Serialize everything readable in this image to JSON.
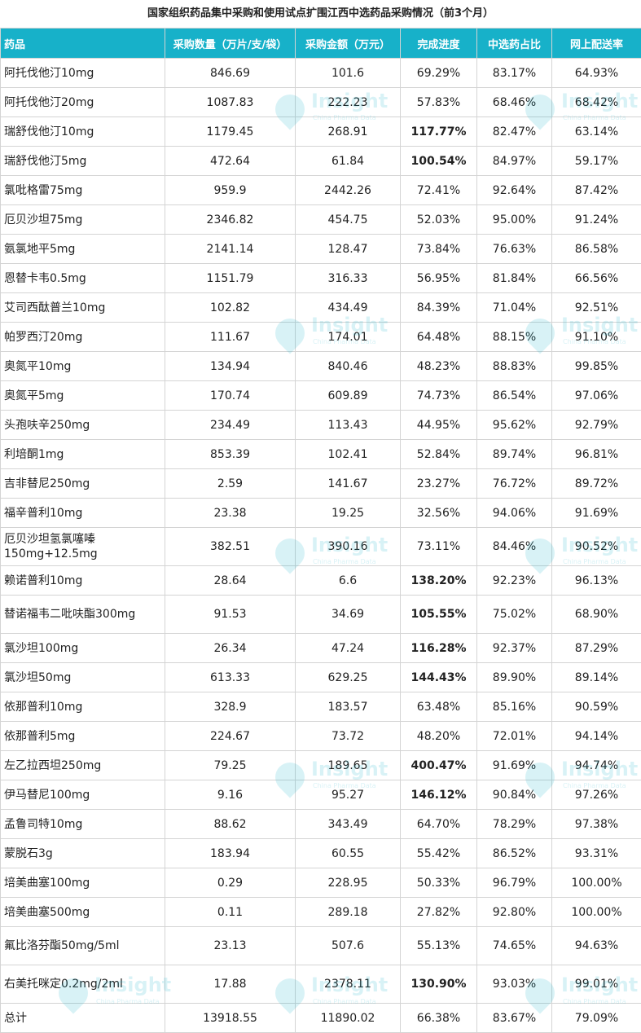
{
  "title": "国家组织药品集中采购和使用试点扩围江西中选药品采购情况（前3个月）",
  "watermark": {
    "word": "Insight",
    "sub": "China Pharma Data"
  },
  "headers": [
    "药品",
    "采购数量（万片/支/袋）",
    "采购金额（万元）",
    "完成进度",
    "中选药占比",
    "网上配送率"
  ],
  "rows": [
    {
      "name": "阿托伐他汀10mg",
      "qty": "846.69",
      "amount": "101.6",
      "progress": "69.29%",
      "share": "83.17%",
      "delivery": "64.93%"
    },
    {
      "name": "阿托伐他汀20mg",
      "qty": "1087.83",
      "amount": "222.23",
      "progress": "57.83%",
      "share": "68.46%",
      "delivery": "68.42%"
    },
    {
      "name": "瑞舒伐他汀10mg",
      "qty": "1179.45",
      "amount": "268.91",
      "progress": "117.77%",
      "share": "82.47%",
      "delivery": "63.14%"
    },
    {
      "name": "瑞舒伐他汀5mg",
      "qty": "472.64",
      "amount": "61.84",
      "progress": "100.54%",
      "share": "84.97%",
      "delivery": "59.17%"
    },
    {
      "name": "氯吡格雷75mg",
      "qty": "959.9",
      "amount": "2442.26",
      "progress": "72.41%",
      "share": "92.64%",
      "delivery": "87.42%"
    },
    {
      "name": "厄贝沙坦75mg",
      "qty": "2346.82",
      "amount": "454.75",
      "progress": "52.03%",
      "share": "95.00%",
      "delivery": "91.24%"
    },
    {
      "name": "氨氯地平5mg",
      "qty": "2141.14",
      "amount": "128.47",
      "progress": "73.84%",
      "share": "76.63%",
      "delivery": "86.58%"
    },
    {
      "name": "恩替卡韦0.5mg",
      "qty": "1151.79",
      "amount": "316.33",
      "progress": "56.95%",
      "share": "81.84%",
      "delivery": "66.56%"
    },
    {
      "name": "艾司西酞普兰10mg",
      "qty": "102.82",
      "amount": "434.49",
      "progress": "84.39%",
      "share": "71.04%",
      "delivery": "92.51%"
    },
    {
      "name": "帕罗西汀20mg",
      "qty": "111.67",
      "amount": "174.01",
      "progress": "64.48%",
      "share": "88.15%",
      "delivery": "91.10%"
    },
    {
      "name": "奥氮平10mg",
      "qty": "134.94",
      "amount": "840.46",
      "progress": "48.23%",
      "share": "88.83%",
      "delivery": "99.85%"
    },
    {
      "name": "奥氮平5mg",
      "qty": "170.74",
      "amount": "609.89",
      "progress": "74.73%",
      "share": "86.54%",
      "delivery": "97.06%"
    },
    {
      "name": "头孢呋辛250mg",
      "qty": "234.49",
      "amount": "113.43",
      "progress": "44.95%",
      "share": "95.62%",
      "delivery": "92.79%"
    },
    {
      "name": "利培酮1mg",
      "qty": "853.39",
      "amount": "102.41",
      "progress": "52.84%",
      "share": "89.74%",
      "delivery": "96.81%"
    },
    {
      "name": "吉非替尼250mg",
      "qty": "2.59",
      "amount": "141.67",
      "progress": "23.27%",
      "share": "76.72%",
      "delivery": "89.72%"
    },
    {
      "name": "福辛普利10mg",
      "qty": "23.38",
      "amount": "19.25",
      "progress": "32.56%",
      "share": "94.06%",
      "delivery": "91.69%"
    },
    {
      "name": "厄贝沙坦氢氯噻嗪150mg+12.5mg",
      "qty": "382.51",
      "amount": "390.16",
      "progress": "73.11%",
      "share": "84.46%",
      "delivery": "90.52%"
    },
    {
      "name": "赖诺普利10mg",
      "qty": "28.64",
      "amount": "6.6",
      "progress": "138.20%",
      "share": "92.23%",
      "delivery": "96.13%"
    },
    {
      "name": "替诺福韦二吡呋酯300mg",
      "qty": "91.53",
      "amount": "34.69",
      "progress": "105.55%",
      "share": "75.02%",
      "delivery": "68.90%"
    },
    {
      "name": "氯沙坦100mg",
      "qty": "26.34",
      "amount": "47.24",
      "progress": "116.28%",
      "share": "92.37%",
      "delivery": "87.29%"
    },
    {
      "name": "氯沙坦50mg",
      "qty": "613.33",
      "amount": "629.25",
      "progress": "144.43%",
      "share": "89.90%",
      "delivery": "89.14%"
    },
    {
      "name": "依那普利10mg",
      "qty": "328.9",
      "amount": "183.57",
      "progress": "63.48%",
      "share": "85.16%",
      "delivery": "90.59%"
    },
    {
      "name": "依那普利5mg",
      "qty": "224.67",
      "amount": "73.72",
      "progress": "48.20%",
      "share": "72.01%",
      "delivery": "94.14%"
    },
    {
      "name": "左乙拉西坦250mg",
      "qty": "79.25",
      "amount": "189.65",
      "progress": "400.47%",
      "share": "91.69%",
      "delivery": "94.74%"
    },
    {
      "name": "伊马替尼100mg",
      "qty": "9.16",
      "amount": "95.27",
      "progress": "146.12%",
      "share": "90.84%",
      "delivery": "97.26%"
    },
    {
      "name": "孟鲁司特10mg",
      "qty": "88.62",
      "amount": "343.49",
      "progress": "64.70%",
      "share": "78.29%",
      "delivery": "97.38%"
    },
    {
      "name": "蒙脱石3g",
      "qty": "183.94",
      "amount": "60.55",
      "progress": "55.42%",
      "share": "86.52%",
      "delivery": "93.31%"
    },
    {
      "name": "培美曲塞100mg",
      "qty": "0.29",
      "amount": "228.95",
      "progress": "50.33%",
      "share": "96.79%",
      "delivery": "100.00%"
    },
    {
      "name": "培美曲塞500mg",
      "qty": "0.11",
      "amount": "289.18",
      "progress": "27.82%",
      "share": "92.80%",
      "delivery": "100.00%"
    },
    {
      "name": "氟比洛芬酯50mg/5ml",
      "qty": "23.13",
      "amount": "507.6",
      "progress": "55.13%",
      "share": "74.65%",
      "delivery": "94.63%"
    },
    {
      "name": "右美托咪定0.2mg/2ml",
      "qty": "17.88",
      "amount": "2378.11",
      "progress": "130.90%",
      "share": "93.03%",
      "delivery": "99.01%"
    },
    {
      "name": "总计",
      "qty": "13918.55",
      "amount": "11890.02",
      "progress": "66.38%",
      "share": "83.67%",
      "delivery": "79.09%"
    }
  ]
}
